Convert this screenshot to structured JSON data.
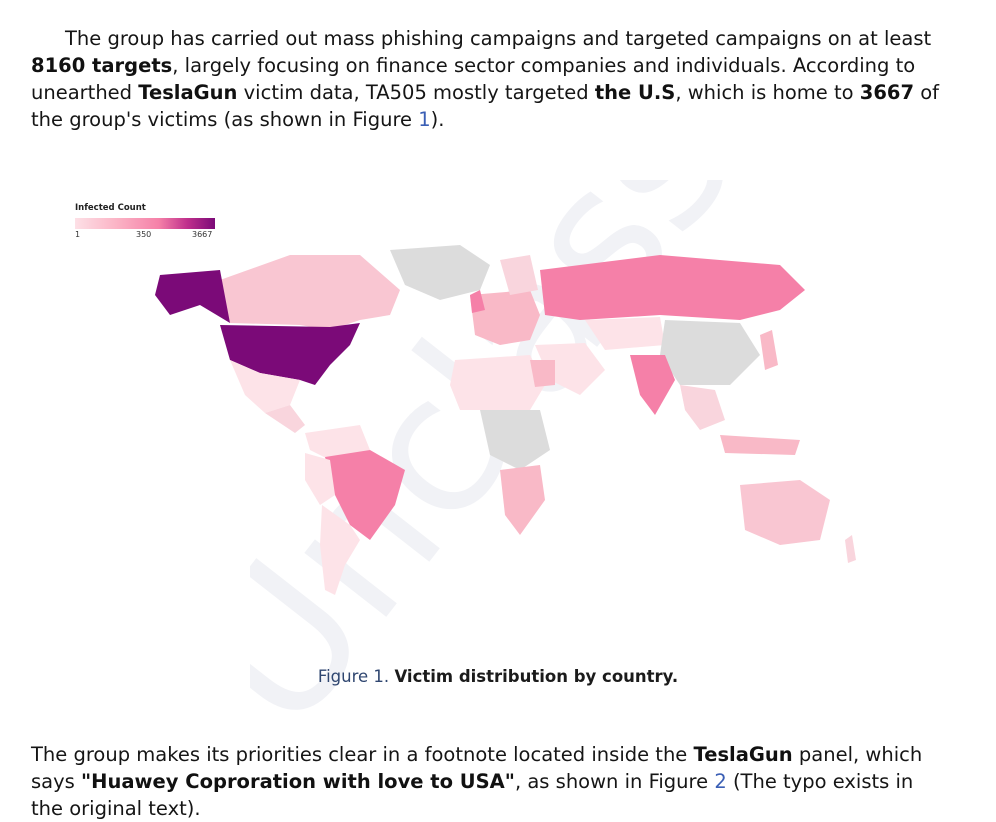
{
  "paragraph1": {
    "t1": "The group has carried out mass phishing campaigns and targeted campaigns on at least ",
    "b1": "8160 targets",
    "t2": ", largely focusing on finance sector companies and individuals. According to unearthed ",
    "b2": "TeslaGun",
    "t3": " victim data, TA505 mostly targeted ",
    "b3": "the U.S",
    "t4": ", which is home to ",
    "b4": "3667",
    "t5": " of the group's victims (as shown in Figure ",
    "fig": "1",
    "t6": ")."
  },
  "legend": {
    "title": "Infected Count",
    "ticks": [
      "1",
      "350",
      "3667"
    ]
  },
  "caption": {
    "figure_label": "Figure 1.",
    "text": "Victim distribution by country."
  },
  "paragraph2": {
    "t1": "The group makes its priorities clear in a footnote located inside the ",
    "b1": "TeslaGun",
    "t2": " panel, which says ",
    "b2": "\"Huawey Coproration with love to USA\"",
    "t3": ", as shown in Figure ",
    "fig": "2",
    "t4": " (The typo exists in the original text)."
  },
  "watermark": "Unclassified",
  "colors": {
    "none": "#dcdcdc",
    "low": "#fde0e6",
    "light": "#f9b9c7",
    "mid": "#f580a8",
    "max": "#7b0a78"
  }
}
